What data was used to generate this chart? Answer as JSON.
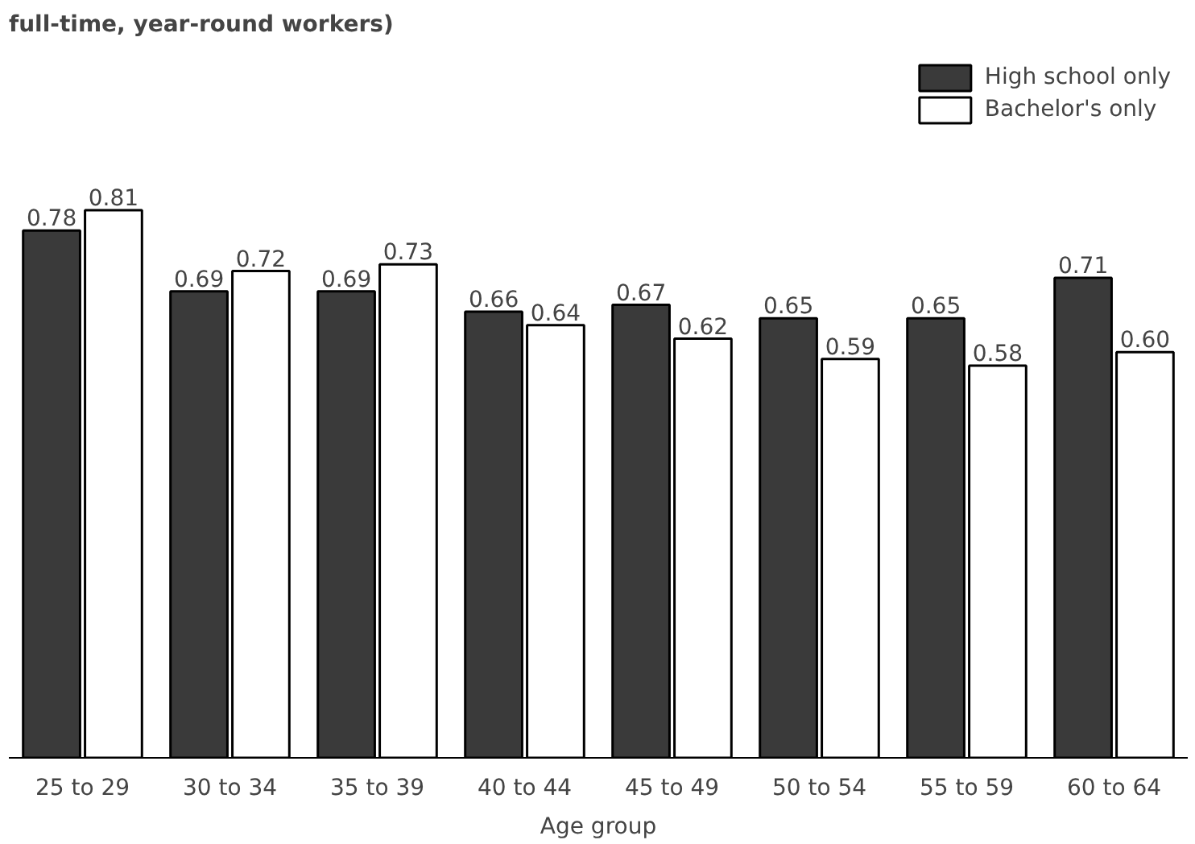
{
  "chart_data": {
    "type": "bar",
    "title": "full-time, year-round workers)",
    "xlabel": "Age group",
    "categories": [
      "25 to 29",
      "30 to 34",
      "35 to 39",
      "40 to 44",
      "45 to 49",
      "50 to 54",
      "55 to 59",
      "60 to 64"
    ],
    "series": [
      {
        "name": "High school only",
        "color": "#3a3a3a",
        "values": [
          0.78,
          0.69,
          0.69,
          0.66,
          0.67,
          0.65,
          0.65,
          0.71
        ],
        "value_labels": [
          "0.78",
          "0.69",
          "0.69",
          "0.66",
          "0.67",
          "0.65",
          "0.65",
          "0.71"
        ]
      },
      {
        "name": "Bachelor's only",
        "color": "#ffffff",
        "values": [
          0.81,
          0.72,
          0.73,
          0.64,
          0.62,
          0.59,
          0.58,
          0.6
        ],
        "value_labels": [
          "0.81",
          "0.72",
          "0.73",
          "0.64",
          "0.62",
          "0.59",
          "0.58",
          "0.60"
        ]
      }
    ],
    "legend": "top right"
  }
}
